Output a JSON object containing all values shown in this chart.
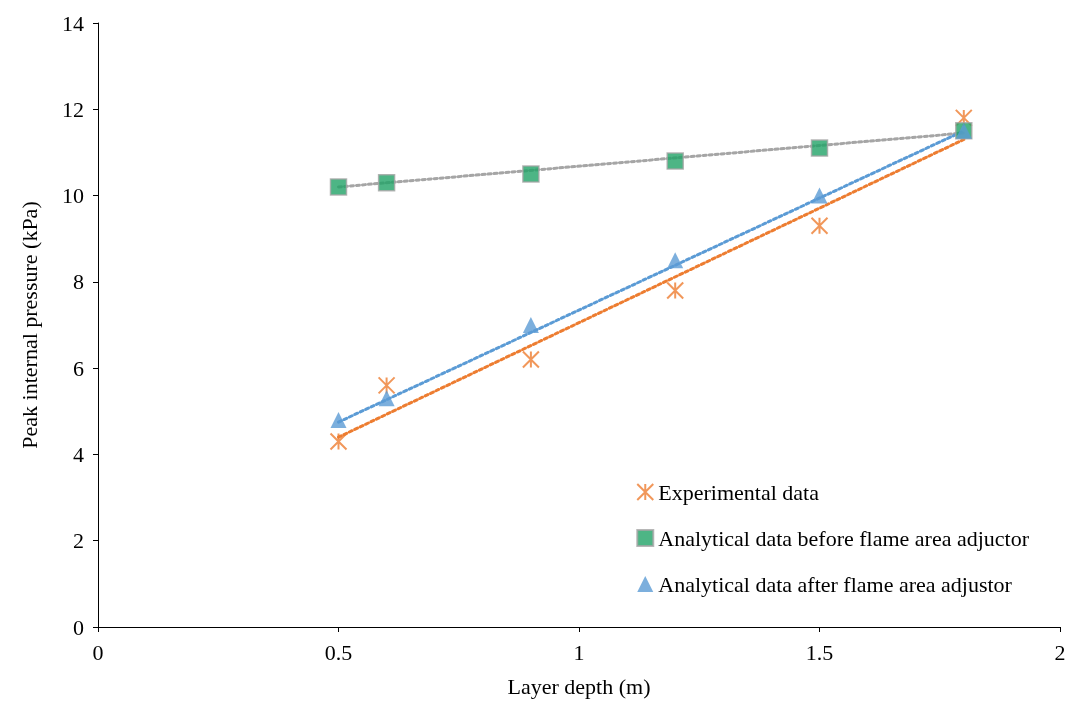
{
  "chart_data": {
    "type": "scatter",
    "xlabel": "Layer depth (m)",
    "ylabel": "Peak internal pressure (kPa)",
    "xlim": [
      0,
      2
    ],
    "xticks": [
      0,
      0.5,
      1,
      1.5,
      2
    ],
    "ylim": [
      0,
      14
    ],
    "yticks": [
      0,
      2,
      4,
      6,
      8,
      10,
      12,
      14
    ],
    "grid": false,
    "legend": "bottom right",
    "series": [
      {
        "name": "Experimental data",
        "color": "#ed7d31",
        "marker": "cross",
        "x": [
          0.5,
          0.6,
          0.9,
          1.2,
          1.5,
          1.8
        ],
        "values": [
          4.3,
          5.6,
          6.2,
          7.8,
          9.3,
          11.8
        ]
      },
      {
        "name": "Analytical data before flame area adjuctor",
        "color": "#21a366",
        "marker": "square",
        "x": [
          0.5,
          0.6,
          0.9,
          1.2,
          1.5,
          1.8
        ],
        "values": [
          10.2,
          10.3,
          10.5,
          10.8,
          11.1,
          11.5
        ]
      },
      {
        "name": "Analytical data after flame area adjustor",
        "color": "#5b9bd5",
        "marker": "triangle",
        "x": [
          0.5,
          0.6,
          0.9,
          1.2,
          1.5,
          1.8
        ],
        "values": [
          4.8,
          5.3,
          7.0,
          8.5,
          10.0,
          11.5
        ]
      },
      {
        "type": "line",
        "color": "#ed7d31",
        "line_style": "dotted",
        "marker": "none",
        "x": [
          0.5,
          1.8
        ],
        "values": [
          4.4,
          11.3
        ]
      },
      {
        "type": "line",
        "color": "#a5a5a5",
        "line_style": "dotted",
        "marker": "none",
        "x": [
          0.5,
          1.8
        ],
        "values": [
          10.2,
          11.45
        ]
      },
      {
        "type": "line",
        "color": "#5b9bd5",
        "line_style": "dotted",
        "marker": "none",
        "x": [
          0.5,
          1.8
        ],
        "values": [
          4.75,
          11.5
        ]
      }
    ]
  }
}
